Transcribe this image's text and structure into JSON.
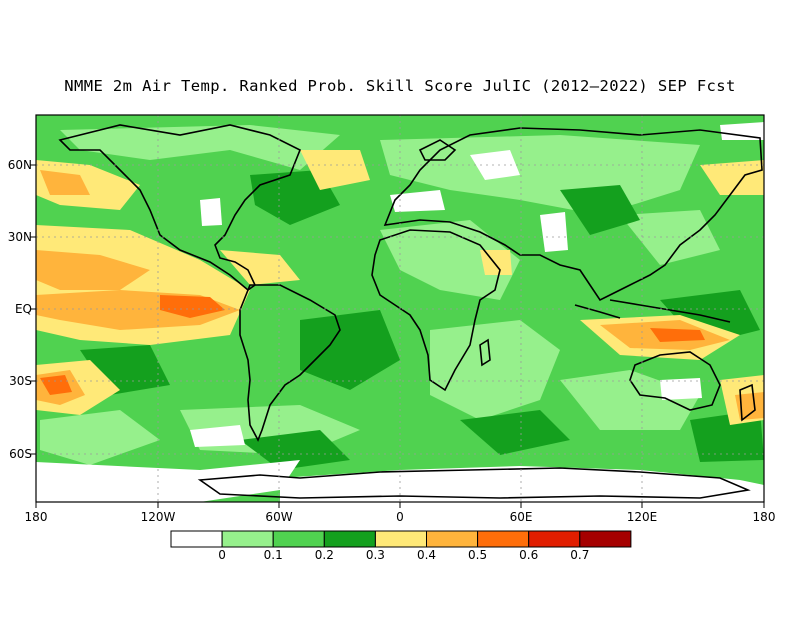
{
  "title": "NMME 2m Air Temp. Ranked Prob. Skill Score JulIC (2012–2022) SEP Fcst",
  "lon_labels": [
    "180",
    "120W",
    "60W",
    "0",
    "60E",
    "120E",
    "180"
  ],
  "lat_labels": [
    "60N",
    "30N",
    "EQ",
    "30S",
    "60S"
  ],
  "colorbar": {
    "colors": [
      "#ffffff",
      "#96f08c",
      "#50d250",
      "#14a01e",
      "#ffe978",
      "#ffb43c",
      "#ff6e0a",
      "#e11e00",
      "#a50000"
    ],
    "labels": [
      "0",
      "0.1",
      "0.2",
      "0.3",
      "0.4",
      "0.5",
      "0.6",
      "0.7"
    ]
  }
}
